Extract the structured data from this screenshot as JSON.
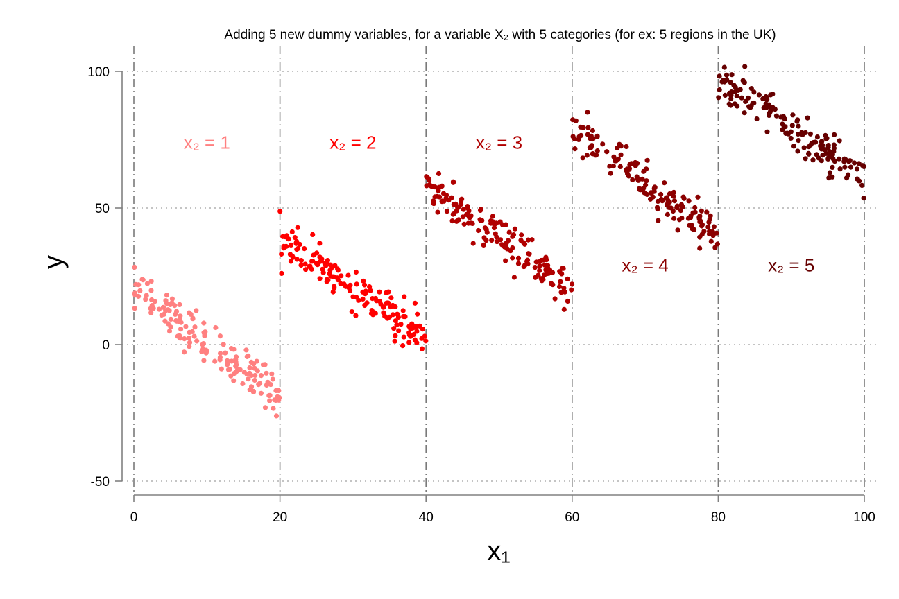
{
  "chart_data": {
    "type": "scatter",
    "title": "Adding 5 new dummy variables, for a variable X₂ with 5 categories (for ex: 5 regions in the UK)",
    "xlabel": "x₁",
    "ylabel": "y",
    "xlim": [
      0,
      100
    ],
    "ylim": [
      -50,
      100
    ],
    "x_ticks": [
      0,
      20,
      40,
      60,
      80,
      100
    ],
    "x_tick_labels": [
      "0",
      "20",
      "40",
      "60",
      "80",
      "100"
    ],
    "y_ticks": [
      -50,
      0,
      50,
      100
    ],
    "y_tick_labels": [
      "-50",
      "0",
      "50",
      "100"
    ],
    "grid": "horizontal dotted at y ticks",
    "vlines_x": [
      0,
      20,
      40,
      60,
      80,
      100
    ],
    "series": [
      {
        "name": "x₂ = 1",
        "color": "#ff8080",
        "x_range": [
          0,
          20
        ],
        "y_start": 20,
        "y_end": -18,
        "noise": 5,
        "n": 160,
        "label_pos": [
          10,
          74
        ]
      },
      {
        "name": "x₂ = 2",
        "color": "#ff0000",
        "x_range": [
          20,
          40
        ],
        "y_start": 39,
        "y_end": 2,
        "noise": 4.5,
        "n": 160,
        "label_pos": [
          30,
          74
        ]
      },
      {
        "name": "x₂ = 3",
        "color": "#b00000",
        "x_range": [
          40,
          60
        ],
        "y_start": 58,
        "y_end": 20,
        "noise": 4.5,
        "n": 160,
        "label_pos": [
          50,
          74
        ]
      },
      {
        "name": "x₂ = 4",
        "color": "#8b0000",
        "x_range": [
          60,
          80
        ],
        "y_start": 78,
        "y_end": 40,
        "noise": 4.5,
        "n": 160,
        "label_pos": [
          70,
          29
        ]
      },
      {
        "name": "x₂ = 5",
        "color": "#660000",
        "x_range": [
          80,
          100
        ],
        "y_start": 97,
        "y_end": 61,
        "noise": 4.5,
        "n": 160,
        "label_pos": [
          90,
          29
        ]
      }
    ]
  }
}
